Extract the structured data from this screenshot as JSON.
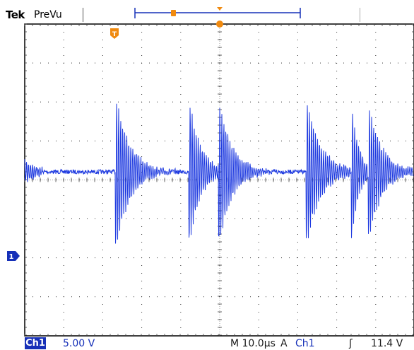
{
  "header": {
    "brand": "Tek",
    "mode": "PreVu"
  },
  "markers": {
    "trigger_marker": "T",
    "channel_marker": "1"
  },
  "status": {
    "channel": "Ch1",
    "scale": "5.00 V",
    "timebase": "M 10.0µs",
    "trigger_mode": "A",
    "trigger_source": "Ch1",
    "trigger_slope": "ʃ",
    "trigger_level": "11.4 V"
  },
  "colors": {
    "trace": "#1f3be0",
    "trigger_marker": "#f08a10",
    "channel_marker": "#1630b8",
    "grid": "#000000"
  }
}
